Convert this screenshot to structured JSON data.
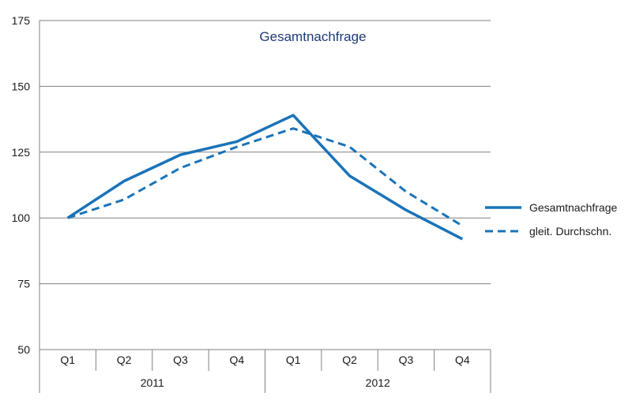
{
  "chart_data": {
    "type": "line",
    "title": "Gesamtnachfrage",
    "ylim": [
      50,
      175
    ],
    "yticks": [
      50,
      75,
      100,
      125,
      150,
      175
    ],
    "grid": true,
    "legend_position": "right",
    "categories": [
      "Q1",
      "Q2",
      "Q3",
      "Q4",
      "Q1",
      "Q2",
      "Q3",
      "Q4"
    ],
    "groups": [
      {
        "label": "2011",
        "span": 4
      },
      {
        "label": "2012",
        "span": 4
      }
    ],
    "series": [
      {
        "name": "Gesamtnachfrage",
        "style": "solid",
        "color": "#1a73b8",
        "values": [
          100,
          114,
          124,
          129,
          139,
          116,
          103,
          92
        ]
      },
      {
        "name": "gleit. Durchschn.",
        "style": "dashed",
        "color": "#1a73b8",
        "values": [
          100,
          107,
          119,
          127,
          134,
          127,
          110,
          97
        ]
      }
    ]
  }
}
